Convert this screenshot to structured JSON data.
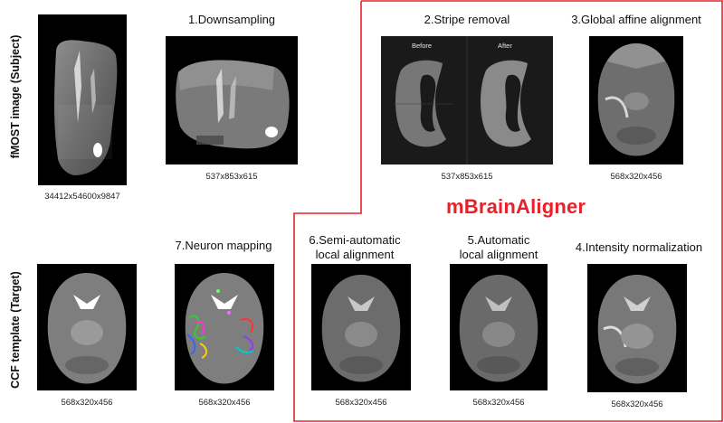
{
  "row_labels": {
    "subject": "fMOST image (Subject)",
    "target": "CCF template (Target)"
  },
  "brand": {
    "name": "mBrainAligner",
    "color": "#e8202a"
  },
  "steps": [
    {
      "id": "subject",
      "title": "",
      "dims": "34412x54600x9847"
    },
    {
      "id": "downsampling",
      "title": "1.Downsampling",
      "dims": "537x853x615"
    },
    {
      "id": "stripe",
      "title": "2.Stripe removal",
      "dims": "537x853x615",
      "panes": [
        "Before",
        "After"
      ]
    },
    {
      "id": "affine",
      "title": "3.Global affine alignment",
      "dims": "568x320x456"
    },
    {
      "id": "intensity",
      "title": "4.Intensity normalization",
      "dims": "568x320x456"
    },
    {
      "id": "auto",
      "title_lines": [
        "5.Automatic",
        "local alignment"
      ],
      "dims": "568x320x456"
    },
    {
      "id": "semi",
      "title_lines": [
        "6.Semi-automatic",
        "local alignment"
      ],
      "dims": "568x320x456"
    },
    {
      "id": "neuron",
      "title": "7.Neuron mapping",
      "dims": "568x320x456"
    },
    {
      "id": "ccf",
      "title": "",
      "dims": "568x320x456"
    }
  ]
}
